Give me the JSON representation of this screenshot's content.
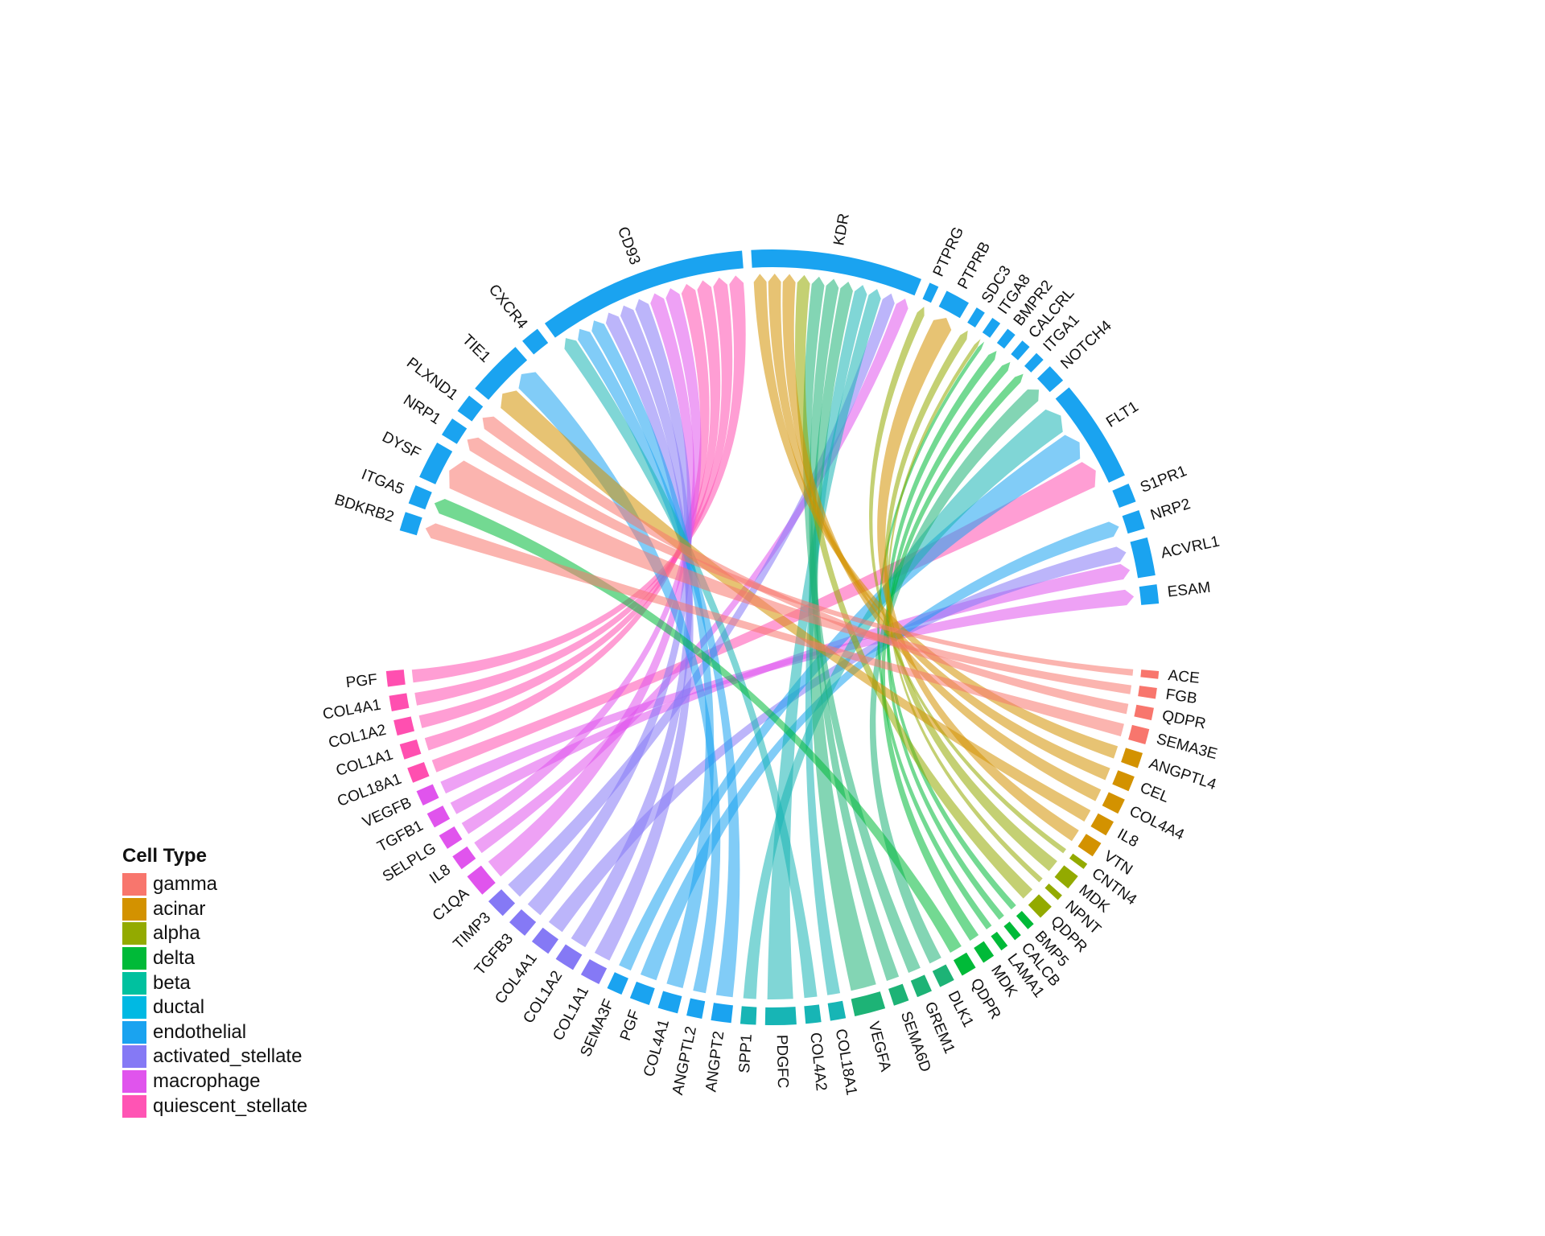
{
  "legend": {
    "title": "Cell Type",
    "items": [
      {
        "name": "gamma",
        "color": "#F8766D"
      },
      {
        "name": "acinar",
        "color": "#D39200"
      },
      {
        "name": "alpha",
        "color": "#93AA00"
      },
      {
        "name": "delta",
        "color": "#00BA38"
      },
      {
        "name": "beta",
        "color": "#00C19F"
      },
      {
        "name": "ductal",
        "color": "#00B9E3"
      },
      {
        "name": "endothelial",
        "color": "#1AA3F0"
      },
      {
        "name": "activated_stellate",
        "color": "#8579F5"
      },
      {
        "name": "macrophage",
        "color": "#E054ED"
      },
      {
        "name": "quiescent_stellate",
        "color": "#FF54B4"
      }
    ]
  },
  "colors": {
    "gamma": "#F8766D",
    "acinar": "#D39200",
    "alpha": "#93AA00",
    "delta": "#00BA38",
    "beta": "#1DB376",
    "ductal": "#17B5B5",
    "endothelial": "#1AA3F0",
    "activated_stellate": "#8579F5",
    "macrophage": "#E054ED",
    "quiescent_stellate": "#FF4FB0"
  },
  "receptors": [
    {
      "name": "BDKRB2",
      "weight": 1
    },
    {
      "name": "ITGA5",
      "weight": 1
    },
    {
      "name": "DYSF",
      "weight": 2
    },
    {
      "name": "NRP1",
      "weight": 1
    },
    {
      "name": "PLXND1",
      "weight": 1
    },
    {
      "name": "TIE1",
      "weight": 3
    },
    {
      "name": "CXCR4",
      "weight": 1
    },
    {
      "name": "CD93",
      "weight": 11
    },
    {
      "name": "KDR",
      "weight": 9
    },
    {
      "name": "PTPRG",
      "weight": 0.5
    },
    {
      "name": "PTPRB",
      "weight": 1.3
    },
    {
      "name": "SDC3",
      "weight": 0.5
    },
    {
      "name": "ITGA8",
      "weight": 0.5
    },
    {
      "name": "BMPR2",
      "weight": 0.5
    },
    {
      "name": "CALCRL",
      "weight": 0.5
    },
    {
      "name": "ITGA1",
      "weight": 0.5
    },
    {
      "name": "NOTCH4",
      "weight": 1
    },
    {
      "name": "FLT1",
      "weight": 5.4
    },
    {
      "name": "S1PR1",
      "weight": 1
    },
    {
      "name": "NRP2",
      "weight": 1
    },
    {
      "name": "ACVRL1",
      "weight": 2
    },
    {
      "name": "ESAM",
      "weight": 1
    }
  ],
  "ligands": [
    {
      "name": "ACE",
      "type": "gamma",
      "weight": 0.5
    },
    {
      "name": "FGB",
      "type": "gamma",
      "weight": 0.7
    },
    {
      "name": "QDPR",
      "type": "gamma",
      "weight": 0.8
    },
    {
      "name": "SEMA3E",
      "type": "gamma",
      "weight": 1
    },
    {
      "name": "ANGPTL4",
      "type": "acinar",
      "weight": 1
    },
    {
      "name": "CEL",
      "type": "acinar",
      "weight": 1
    },
    {
      "name": "COL4A4",
      "type": "acinar",
      "weight": 1
    },
    {
      "name": "IL8",
      "type": "acinar",
      "weight": 1
    },
    {
      "name": "VTN",
      "type": "acinar",
      "weight": 1
    },
    {
      "name": "CNTN4",
      "type": "alpha",
      "weight": 0.4
    },
    {
      "name": "MDK",
      "type": "alpha",
      "weight": 1
    },
    {
      "name": "NPNT",
      "type": "alpha",
      "weight": 0.4
    },
    {
      "name": "QDPR",
      "type": "alpha",
      "weight": 1
    },
    {
      "name": "BMP5",
      "type": "delta",
      "weight": 0.5
    },
    {
      "name": "CALCB",
      "type": "delta",
      "weight": 0.5
    },
    {
      "name": "LAMA1",
      "type": "delta",
      "weight": 0.5
    },
    {
      "name": "MDK",
      "type": "delta",
      "weight": 0.8
    },
    {
      "name": "QDPR",
      "type": "delta",
      "weight": 1
    },
    {
      "name": "DLK1",
      "type": "beta",
      "weight": 1
    },
    {
      "name": "GREM1",
      "type": "beta",
      "weight": 1
    },
    {
      "name": "SEMA6D",
      "type": "beta",
      "weight": 1
    },
    {
      "name": "VEGFA",
      "type": "beta",
      "weight": 2
    },
    {
      "name": "COL18A1",
      "type": "ductal",
      "weight": 1
    },
    {
      "name": "COL4A2",
      "type": "ductal",
      "weight": 1
    },
    {
      "name": "PDGFC",
      "type": "ductal",
      "weight": 2
    },
    {
      "name": "SPP1",
      "type": "ductal",
      "weight": 1
    },
    {
      "name": "ANGPT2",
      "type": "endothelial",
      "weight": 1.3
    },
    {
      "name": "ANGPTL2",
      "type": "endothelial",
      "weight": 1
    },
    {
      "name": "COL4A1",
      "type": "endothelial",
      "weight": 1.3
    },
    {
      "name": "PGF",
      "type": "endothelial",
      "weight": 1.3
    },
    {
      "name": "SEMA3F",
      "type": "endothelial",
      "weight": 1
    },
    {
      "name": "COL1A1",
      "type": "activated_stellate",
      "weight": 1.3
    },
    {
      "name": "COL1A2",
      "type": "activated_stellate",
      "weight": 1.3
    },
    {
      "name": "COL4A1",
      "type": "activated_stellate",
      "weight": 1.3
    },
    {
      "name": "TGFB3",
      "type": "activated_stellate",
      "weight": 1.3
    },
    {
      "name": "TIMP3",
      "type": "activated_stellate",
      "weight": 1.3
    },
    {
      "name": "C1QA",
      "type": "macrophage",
      "weight": 1.5
    },
    {
      "name": "IL8",
      "type": "macrophage",
      "weight": 1
    },
    {
      "name": "SELPLG",
      "type": "macrophage",
      "weight": 1
    },
    {
      "name": "TGFB1",
      "type": "macrophage",
      "weight": 1
    },
    {
      "name": "VEGFB",
      "type": "macrophage",
      "weight": 1
    },
    {
      "name": "COL18A1",
      "type": "quiescent_stellate",
      "weight": 1
    },
    {
      "name": "COL1A1",
      "type": "quiescent_stellate",
      "weight": 1
    },
    {
      "name": "COL1A2",
      "type": "quiescent_stellate",
      "weight": 1
    },
    {
      "name": "COL4A1",
      "type": "quiescent_stellate",
      "weight": 1
    },
    {
      "name": "PGF",
      "type": "quiescent_stellate",
      "weight": 1
    }
  ],
  "links": [
    {
      "from": "PGF",
      "type": "quiescent_stellate",
      "to": "CD93"
    },
    {
      "from": "COL4A1",
      "type": "quiescent_stellate",
      "to": "CD93"
    },
    {
      "from": "COL1A2",
      "type": "quiescent_stellate",
      "to": "CD93"
    },
    {
      "from": "COL1A1",
      "type": "quiescent_stellate",
      "to": "CD93"
    },
    {
      "from": "COL18A1",
      "type": "quiescent_stellate",
      "to": "FLT1"
    },
    {
      "from": "VEGFB",
      "type": "macrophage",
      "to": "ESAM"
    },
    {
      "from": "TGFB1",
      "type": "macrophage",
      "to": "ACVRL1"
    },
    {
      "from": "SELPLG",
      "type": "macrophage",
      "to": "CD93"
    },
    {
      "from": "IL8",
      "type": "macrophage",
      "to": "KDR"
    },
    {
      "from": "C1QA",
      "type": "macrophage",
      "to": "CD93"
    },
    {
      "from": "TIMP3",
      "type": "activated_stellate",
      "to": "KDR"
    },
    {
      "from": "TGFB3",
      "type": "activated_stellate",
      "to": "CD93"
    },
    {
      "from": "COL4A1",
      "type": "activated_stellate",
      "to": "ACVRL1"
    },
    {
      "from": "COL1A2",
      "type": "activated_stellate",
      "to": "CD93"
    },
    {
      "from": "COL1A1",
      "type": "activated_stellate",
      "to": "CD93"
    },
    {
      "from": "SEMA3F",
      "type": "endothelial",
      "to": "FLT1"
    },
    {
      "from": "PGF",
      "type": "endothelial",
      "to": "NRP2"
    },
    {
      "from": "COL4A1",
      "type": "endothelial",
      "to": "CD93"
    },
    {
      "from": "ANGPTL2",
      "type": "endothelial",
      "to": "TIE1"
    },
    {
      "from": "ANGPT2",
      "type": "endothelial",
      "to": "CD93"
    },
    {
      "from": "SPP1",
      "type": "ductal",
      "to": "FLT1"
    },
    {
      "from": "PDGFC",
      "type": "ductal",
      "to": "KDR"
    },
    {
      "from": "COL4A2",
      "type": "ductal",
      "to": "CD93"
    },
    {
      "from": "COL18A1",
      "type": "ductal",
      "to": "KDR"
    },
    {
      "from": "VEGFA",
      "type": "beta",
      "to": "KDR"
    },
    {
      "from": "SEMA6D",
      "type": "beta",
      "to": "KDR"
    },
    {
      "from": "GREM1",
      "type": "beta",
      "to": "KDR"
    },
    {
      "from": "DLK1",
      "type": "beta",
      "to": "NOTCH4"
    },
    {
      "from": "QDPR",
      "type": "delta",
      "to": "ITGA5"
    },
    {
      "from": "MDK",
      "type": "delta",
      "to": "ITGA1"
    },
    {
      "from": "LAMA1",
      "type": "delta",
      "to": "ITGA8"
    },
    {
      "from": "CALCB",
      "type": "delta",
      "to": "CALCRL"
    },
    {
      "from": "BMP5",
      "type": "delta",
      "to": "BMPR2"
    },
    {
      "from": "QDPR",
      "type": "alpha",
      "to": "KDR"
    },
    {
      "from": "NPNT",
      "type": "alpha",
      "to": "ITGA8"
    },
    {
      "from": "MDK",
      "type": "alpha",
      "to": "SDC3"
    },
    {
      "from": "CNTN4",
      "type": "alpha",
      "to": "PTPRG"
    },
    {
      "from": "VTN",
      "type": "acinar",
      "to": "PTPRB"
    },
    {
      "from": "IL8",
      "type": "acinar",
      "to": "TIE1"
    },
    {
      "from": "COL4A4",
      "type": "acinar",
      "to": "KDR"
    },
    {
      "from": "CEL",
      "type": "acinar",
      "to": "KDR"
    },
    {
      "from": "ANGPTL4",
      "type": "acinar",
      "to": "KDR"
    },
    {
      "from": "SEMA3E",
      "type": "gamma",
      "to": "BDKRB2"
    },
    {
      "from": "QDPR",
      "type": "gamma",
      "to": "PLXND1"
    },
    {
      "from": "FGB",
      "type": "gamma",
      "to": "DYSF"
    },
    {
      "from": "ACE",
      "type": "gamma",
      "to": "NRP1"
    }
  ]
}
